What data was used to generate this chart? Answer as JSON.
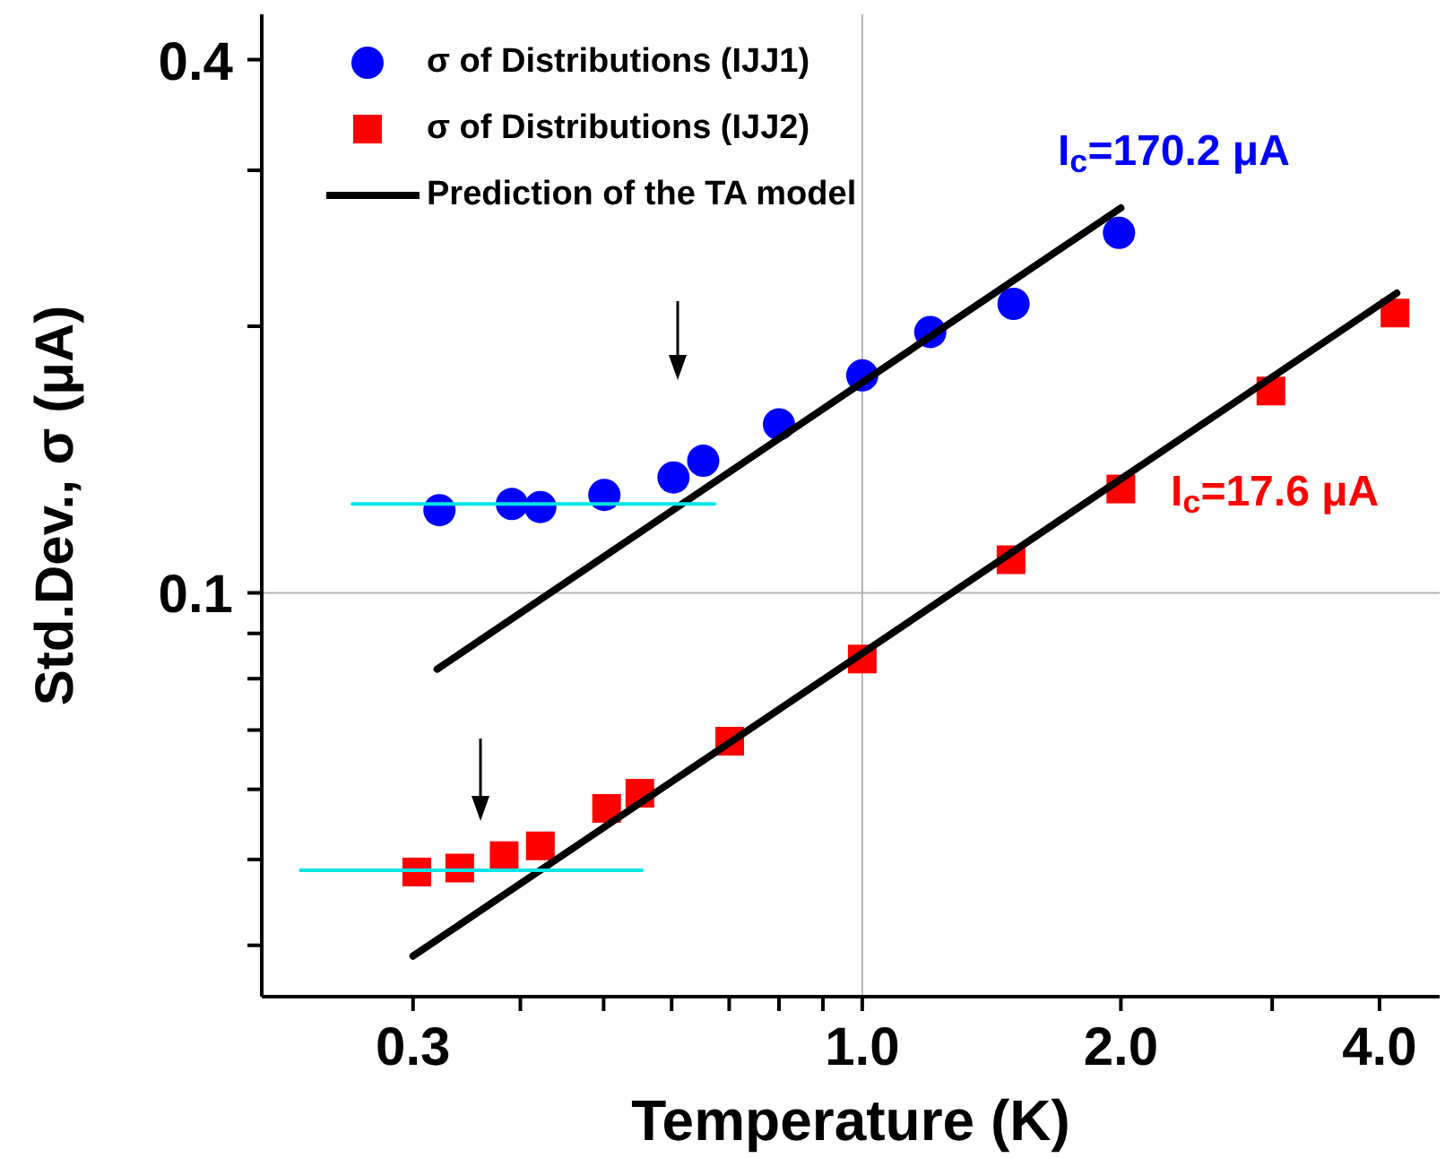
{
  "chart_data": {
    "type": "scatter",
    "xlabel": "Temperature (K)",
    "ylabel": "Std.Dev., σ (μA)",
    "log": "xy",
    "legend": "top left",
    "xlim": [
      0.2,
      4.7
    ],
    "ylim": [
      0.035,
      0.45
    ],
    "xticks": [
      {
        "value": 0.3,
        "label": "0.3"
      },
      {
        "value": 0.4,
        "label": null
      },
      {
        "value": 0.5,
        "label": null
      },
      {
        "value": 0.6,
        "label": null
      },
      {
        "value": 0.7,
        "label": null
      },
      {
        "value": 0.8,
        "label": null
      },
      {
        "value": 0.9,
        "label": null
      },
      {
        "value": 1,
        "label": "1.0"
      },
      {
        "value": 2,
        "label": "2.0"
      },
      {
        "value": 3,
        "label": null
      },
      {
        "value": 4,
        "label": "4.0"
      }
    ],
    "yticks": [
      {
        "value": 0.04,
        "label": null
      },
      {
        "value": 0.05,
        "label": null
      },
      {
        "value": 0.06,
        "label": null
      },
      {
        "value": 0.07,
        "label": null
      },
      {
        "value": 0.08,
        "label": null
      },
      {
        "value": 0.09,
        "label": null
      },
      {
        "value": 0.1,
        "label": "0.1"
      },
      {
        "value": 0.2,
        "label": null
      },
      {
        "value": 0.3,
        "label": null
      },
      {
        "value": 0.4,
        "label": "0.4"
      }
    ],
    "ref_lines": [
      {
        "axis": "x",
        "value": 1,
        "color": "#b4b4b4"
      },
      {
        "axis": "y",
        "value": 0.1,
        "color": "#b4b4b4"
      }
    ],
    "series": [
      {
        "name": "σ of Distributions (IJJ1)",
        "marker": "circle",
        "color": "#0000ff",
        "x": [
          0.322,
          0.391,
          0.422,
          0.501,
          0.603,
          0.653,
          0.8,
          1.0,
          1.2,
          1.5,
          1.99
        ],
        "values": [
          0.124,
          0.126,
          0.125,
          0.129,
          0.135,
          0.141,
          0.155,
          0.176,
          0.197,
          0.212,
          0.255
        ]
      },
      {
        "name": "σ of Distributions (IJJ2)",
        "marker": "square",
        "color": "#ff0000",
        "x": [
          0.303,
          0.34,
          0.383,
          0.422,
          0.504,
          0.551,
          0.701,
          1.0,
          1.49,
          2.0,
          2.99,
          4.17
        ],
        "values": [
          0.0484,
          0.0489,
          0.0505,
          0.0518,
          0.0571,
          0.0594,
          0.068,
          0.0842,
          0.109,
          0.131,
          0.169,
          0.207
        ]
      },
      {
        "name": "Prediction of the TA model",
        "type": "line",
        "marker": "none",
        "color": "#000000",
        "x": [
          0.32,
          2.0
        ],
        "values": [
          0.082,
          0.272
        ]
      },
      {
        "type": "line",
        "marker": "none",
        "color": "#000000",
        "x": [
          0.3,
          4.19
        ],
        "values": [
          0.0389,
          0.218
        ]
      },
      {
        "type": "line",
        "marker": "none",
        "color": "#00e5e5",
        "x": [
          0.255,
          0.673
        ],
        "values": [
          0.126,
          0.126
        ]
      },
      {
        "type": "line",
        "marker": "none",
        "color": "#00e5e5",
        "x": [
          0.222,
          0.554
        ],
        "values": [
          0.0486,
          0.0486
        ]
      }
    ],
    "annotations": [
      "I$_{c}$=170.2 μA",
      "I$_{c}$=17.6 μA"
    ]
  }
}
